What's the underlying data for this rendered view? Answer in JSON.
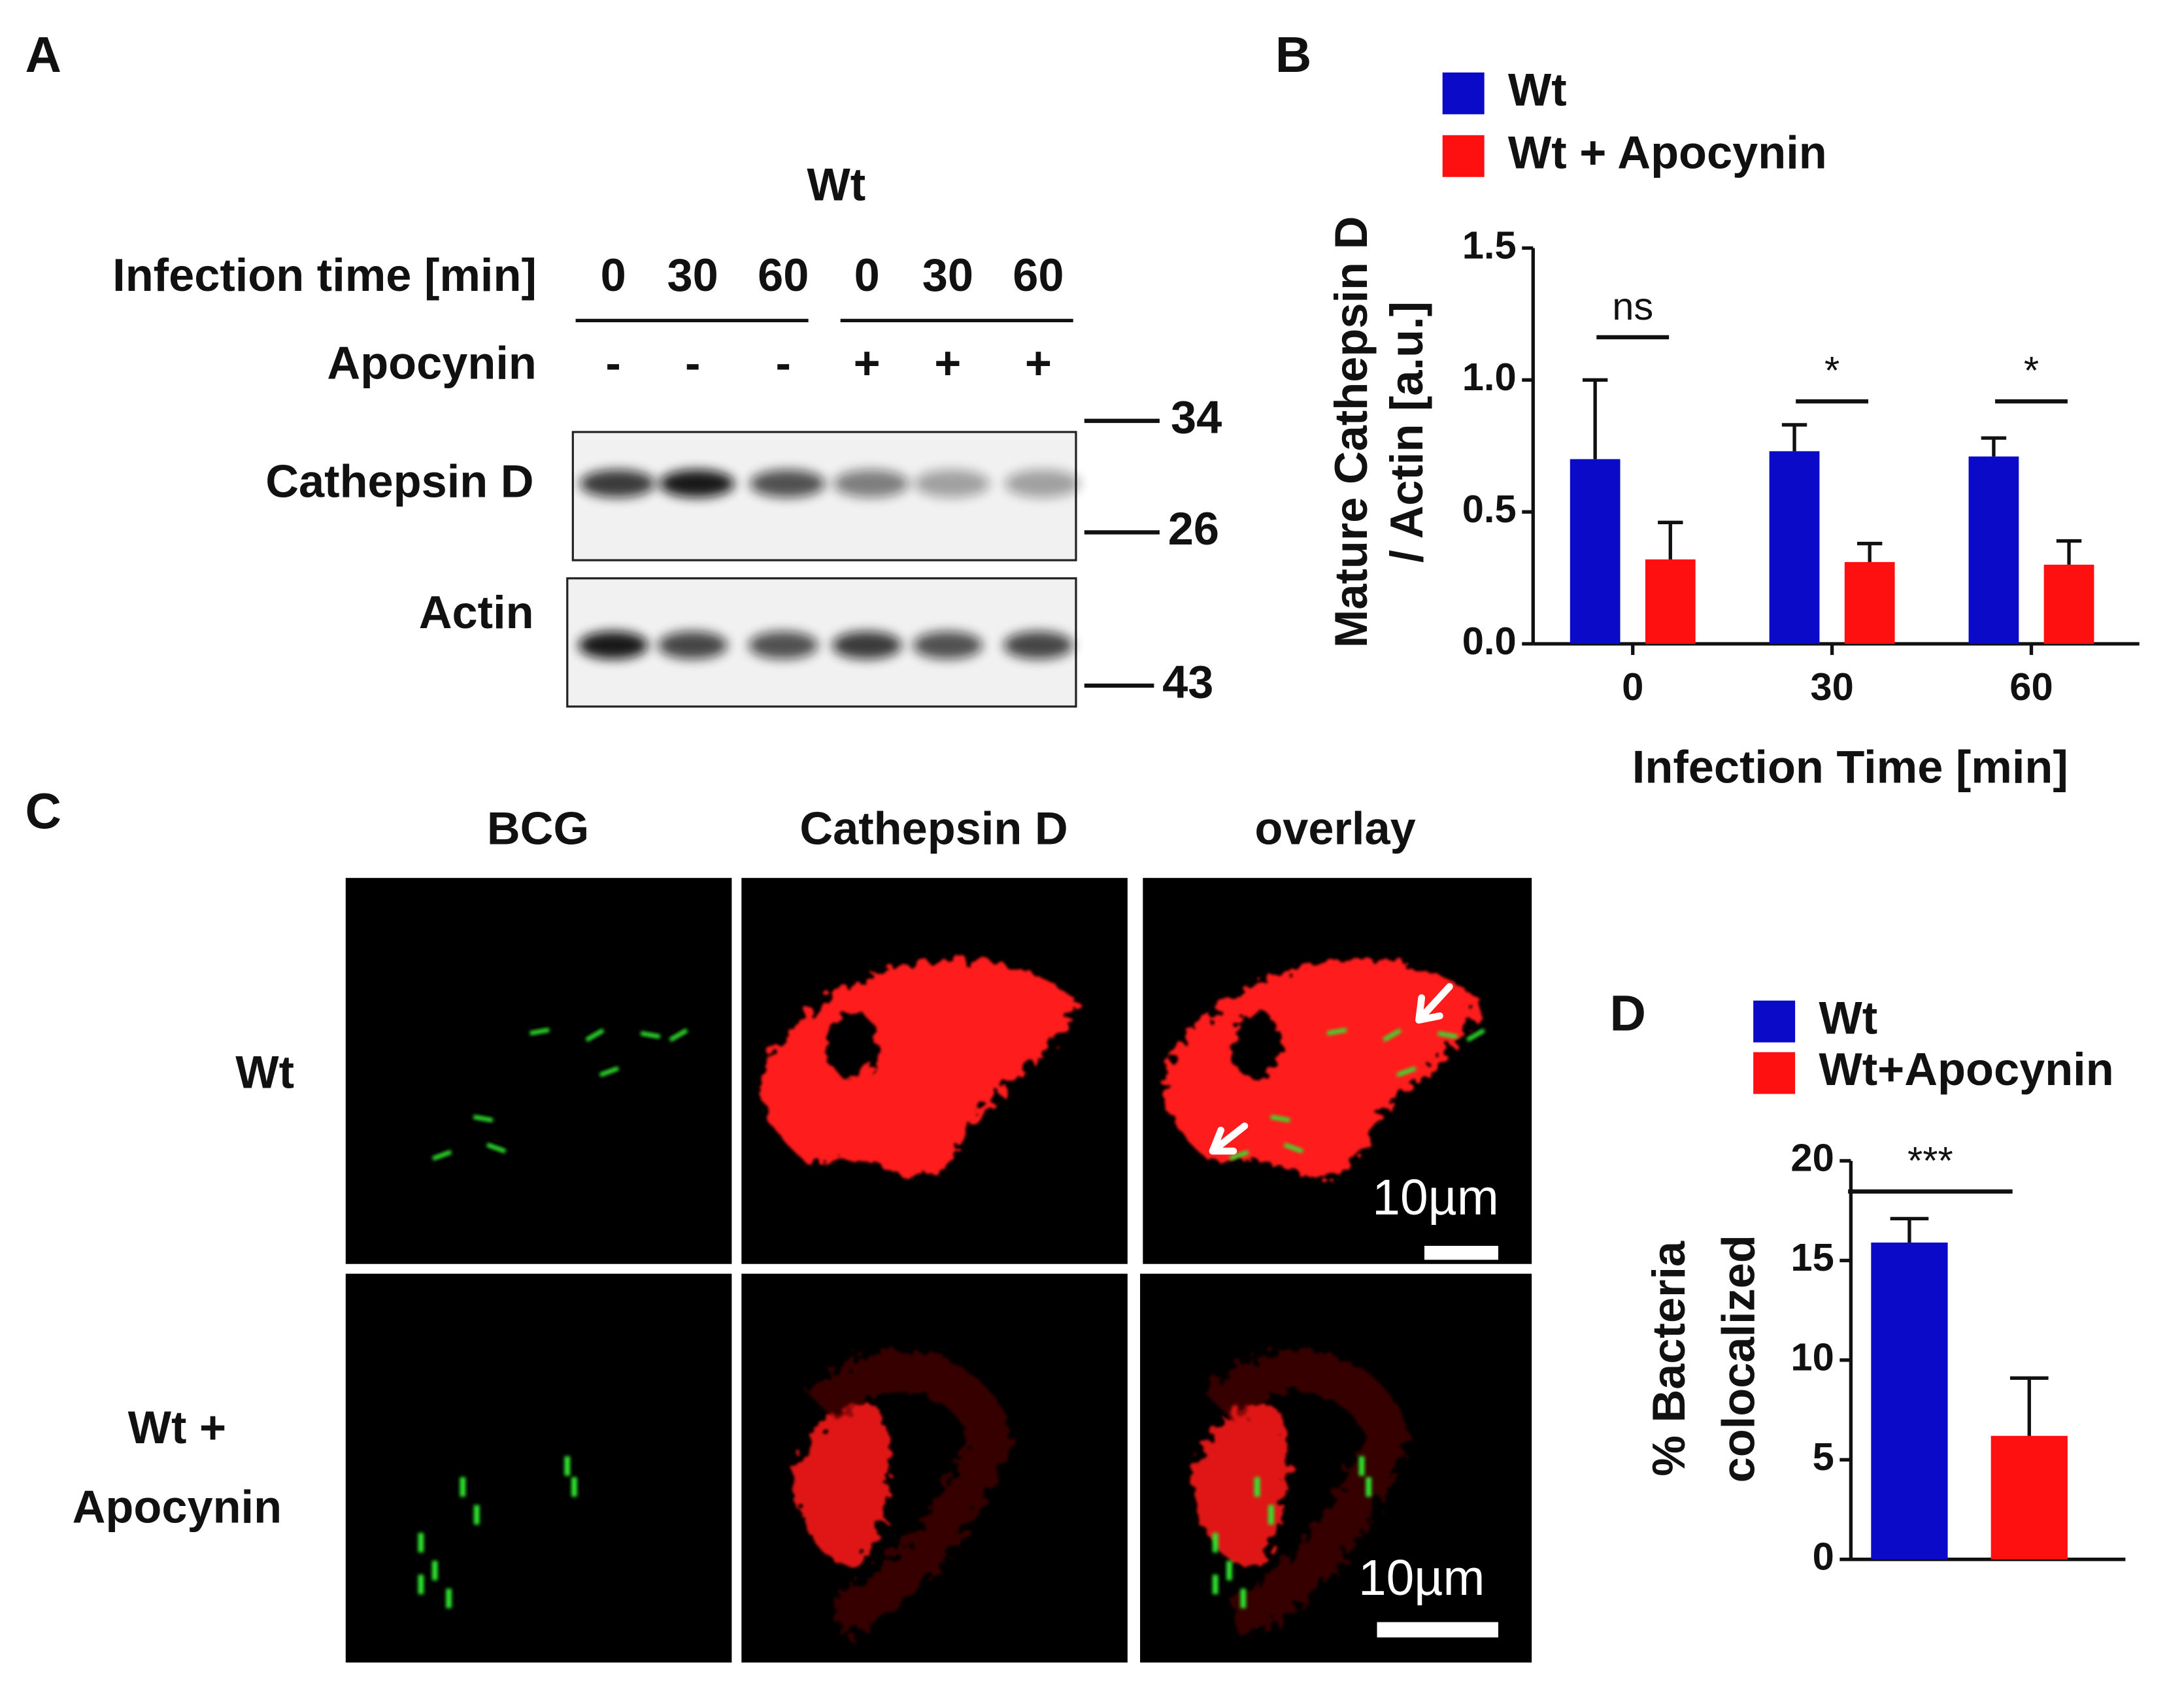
{
  "panel_a": {
    "label": "A",
    "group": "Wt",
    "time_label": "Infection time [min]",
    "times": [
      "0",
      "30",
      "60",
      "0",
      "30",
      "60"
    ],
    "treatment_label": "Apocynin",
    "treatment": [
      "-",
      "-",
      "-",
      "+",
      "+",
      "+"
    ],
    "blots": [
      "Cathepsin D",
      "Actin"
    ],
    "markers": [
      "34",
      "26",
      "43"
    ]
  },
  "panel_b": {
    "label": "B"
  },
  "panel_c": {
    "label": "C",
    "columns": [
      "BCG",
      "Cathepsin D",
      "overlay"
    ],
    "rows": [
      [
        "Wt"
      ],
      [
        "Wt +",
        "Apocynin"
      ]
    ],
    "scale_bars": [
      "10µm",
      "10µm"
    ]
  },
  "panel_d": {
    "label": "D"
  },
  "chart_data": [
    {
      "type": "bar",
      "categories": [
        "0",
        "30",
        "60"
      ],
      "series": [
        {
          "name": "Wt",
          "color": "#0a0ac8",
          "values": [
            0.7,
            0.73,
            0.71
          ],
          "errors": [
            0.3,
            0.1,
            0.07
          ]
        },
        {
          "name": "Wt + Apocynin",
          "color": "#ff1010",
          "values": [
            0.32,
            0.31,
            0.3
          ],
          "errors": [
            0.14,
            0.07,
            0.09
          ]
        }
      ],
      "ylim": [
        0,
        1.5
      ],
      "yticks": [
        {
          "value": 0,
          "label": "0.0"
        },
        0.5,
        {
          "value": 1,
          "label": "1.0"
        },
        1.5
      ],
      "ylabel": [
        "Mature Cathepsin D",
        "/ Actin [a.u.]"
      ],
      "xlabel": "Infection Time [min]",
      "annotations": [
        "ns",
        "*",
        "*"
      ]
    },
    {
      "type": "bar",
      "categories": [
        null
      ],
      "series": [
        {
          "name": "Wt",
          "color": "#0a0ac8",
          "values": [
            15.9
          ],
          "errors": [
            1.2
          ]
        },
        {
          "name": "Wt+Apocynin",
          "color": "#ff1010",
          "values": [
            6.2
          ],
          "errors": [
            2.9
          ]
        }
      ],
      "ylim": [
        0,
        20
      ],
      "yticks": [
        0,
        5,
        10,
        15,
        20
      ],
      "ylabel": [
        "% Bacteria",
        "colocalized"
      ],
      "annotations": [
        "***"
      ]
    }
  ]
}
